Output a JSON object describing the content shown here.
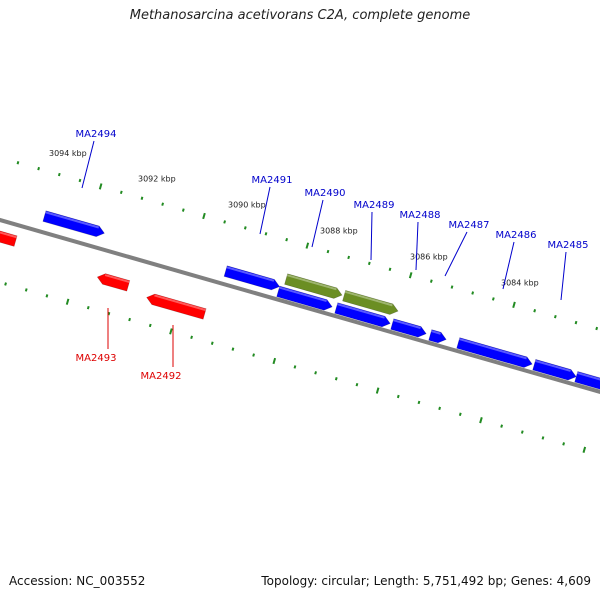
{
  "title": "Methanosarcina acetivorans C2A, complete genome",
  "footer": {
    "accession": "Accession: NC_003552",
    "topology": "Topology: circular; Length: 5,751,492 bp; Genes: 4,609"
  },
  "colors": {
    "backbone": "#808080",
    "forward_gene": "#0000ff",
    "reverse_gene": "#ff0000",
    "other_gene": "#6b8e23",
    "forward_label": "#0000cc",
    "reverse_label": "#dd0000",
    "tick": "#228b22",
    "scale_label": "#222222"
  },
  "scale_labels": [
    "3094 kbp",
    "3092 kbp",
    "3090 kbp",
    "3088 kbp",
    "3086 kbp",
    "3084 kbp"
  ],
  "genes": [
    {
      "id": "ma2494",
      "label": "MA2494",
      "strand": "forward",
      "color": "forward_gene"
    },
    {
      "id": "ma2491",
      "label": "MA2491",
      "strand": "forward",
      "color": "forward_gene"
    },
    {
      "id": "ma2490",
      "label": "MA2490",
      "strand": "forward",
      "color": "other_gene"
    },
    {
      "id": "ma2489",
      "label": "MA2489",
      "strand": "forward",
      "color": "other_gene"
    },
    {
      "id": "ma2488",
      "label": "MA2488",
      "strand": "forward",
      "color": "forward_gene"
    },
    {
      "id": "ma2487",
      "label": "MA2487",
      "strand": "forward",
      "color": "forward_gene"
    },
    {
      "id": "ma2486",
      "label": "MA2486",
      "strand": "forward",
      "color": "forward_gene"
    },
    {
      "id": "ma2485",
      "label": "MA2485",
      "strand": "forward",
      "color": "forward_gene"
    },
    {
      "id": "ma2493",
      "label": "MA2493",
      "strand": "reverse",
      "color": "reverse_gene"
    },
    {
      "id": "ma2492",
      "label": "MA2492",
      "strand": "reverse",
      "color": "reverse_gene"
    }
  ]
}
